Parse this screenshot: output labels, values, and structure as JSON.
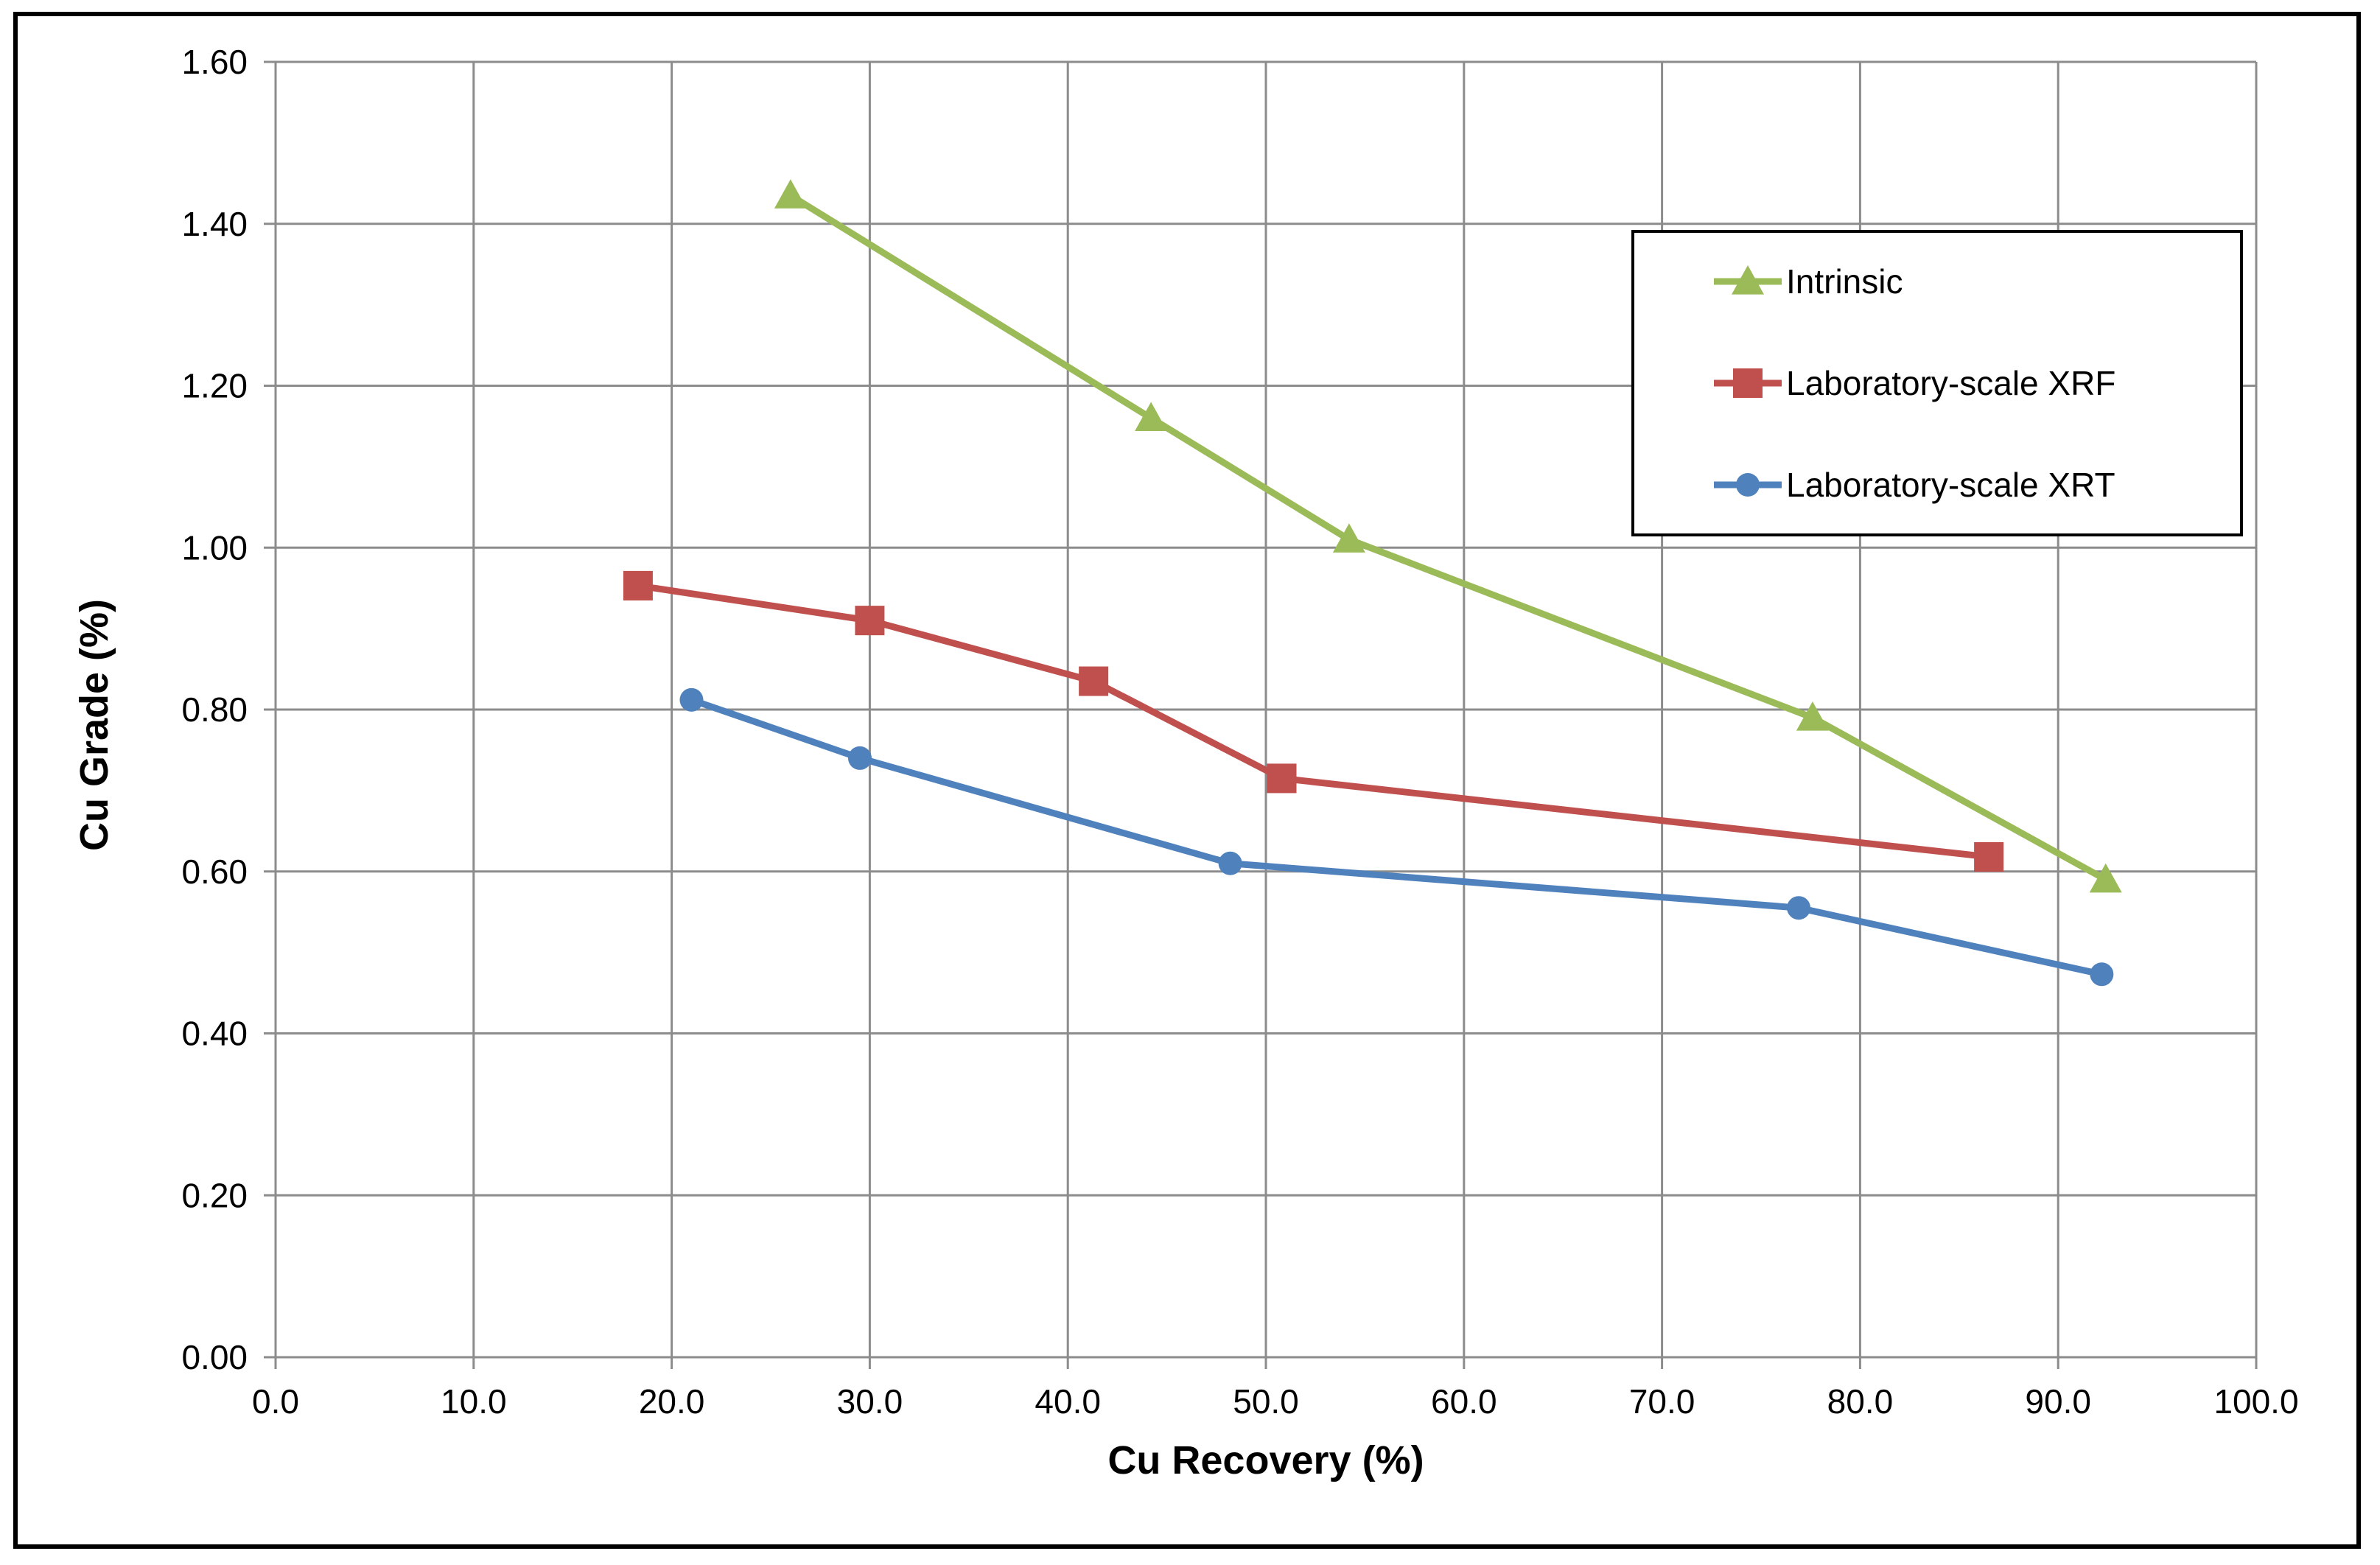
{
  "chart_data": {
    "type": "line",
    "title": "",
    "xlabel": "Cu Recovery (%)",
    "ylabel": "Cu Grade (%)",
    "xlim": [
      0,
      100
    ],
    "ylim": [
      0,
      1.6
    ],
    "x_ticks": [
      "0.0",
      "10.0",
      "20.0",
      "30.0",
      "40.0",
      "50.0",
      "60.0",
      "70.0",
      "80.0",
      "90.0",
      "100.0"
    ],
    "y_ticks": [
      "0.00",
      "0.20",
      "0.40",
      "0.60",
      "0.80",
      "1.00",
      "1.20",
      "1.40",
      "1.60"
    ],
    "grid": true,
    "legend_position": "top-right",
    "series": [
      {
        "name": "Intrinsic",
        "color": "#9bbb59",
        "marker": "triangle",
        "x": [
          26.0,
          44.2,
          54.2,
          77.6,
          92.4
        ],
        "y": [
          1.435,
          1.16,
          1.01,
          0.79,
          0.59
        ]
      },
      {
        "name": "Laboratory-scale XRF",
        "color": "#c0504d",
        "marker": "square",
        "x": [
          18.3,
          30.0,
          41.3,
          50.8,
          86.5
        ],
        "y": [
          0.953,
          0.91,
          0.835,
          0.715,
          0.618
        ]
      },
      {
        "name": "Laboratory-scale XRT",
        "color": "#4f81bd",
        "marker": "circle",
        "x": [
          21.0,
          29.5,
          48.2,
          76.9,
          92.2
        ],
        "y": [
          0.812,
          0.74,
          0.61,
          0.555,
          0.473
        ]
      }
    ]
  }
}
